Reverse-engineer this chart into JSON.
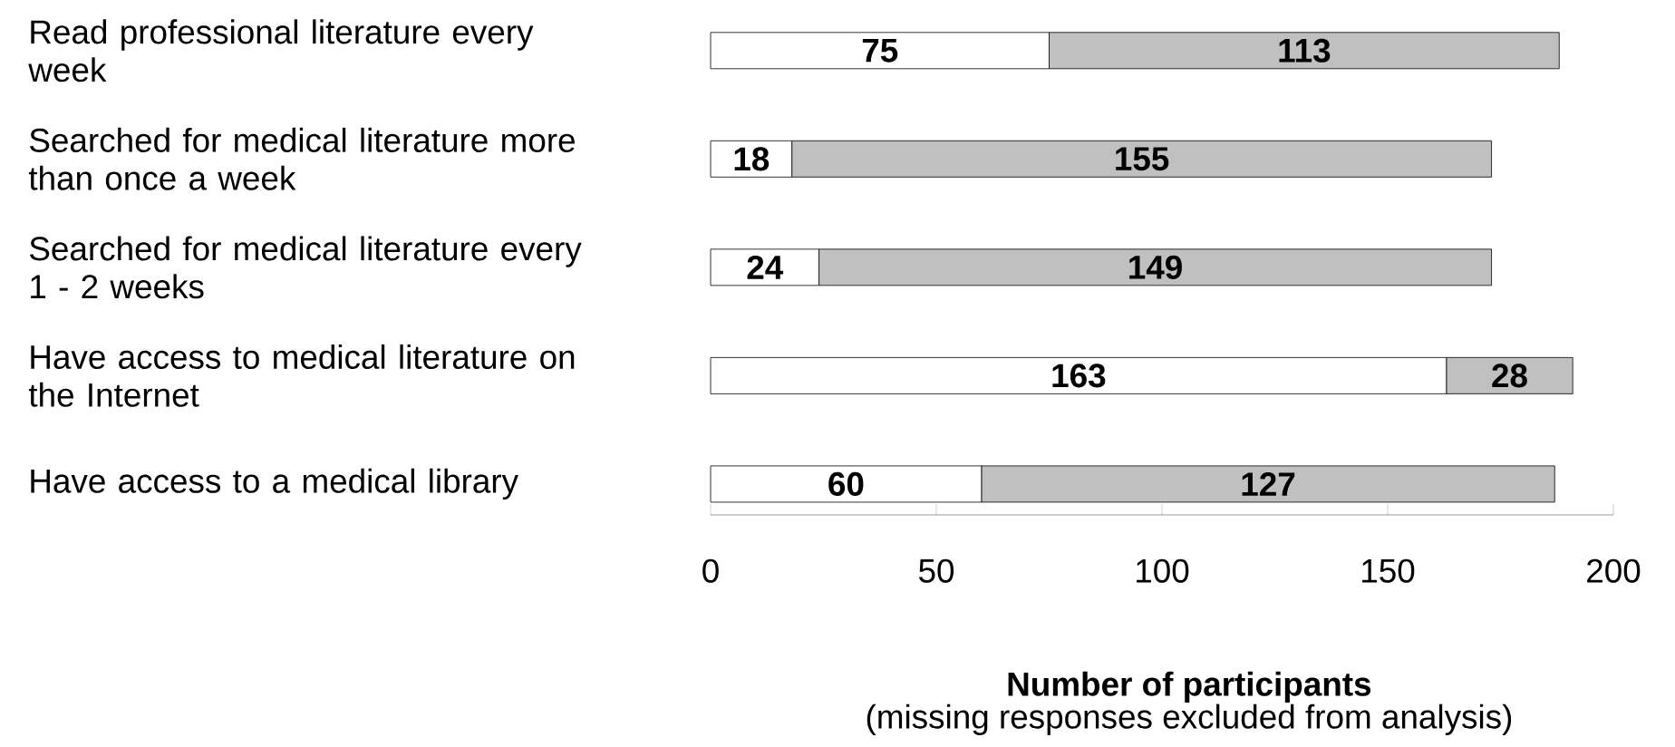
{
  "chart_data": {
    "type": "bar",
    "orientation": "horizontal",
    "stacked": true,
    "data_labels": true,
    "categories": [
      "Read professional literature every week",
      "Searched for medical literature more than once a week",
      "Searched for medical literature every 1 - 2 weeks",
      "Have access to medical literature on the Internet",
      "Have access to a medical library"
    ],
    "series": [
      {
        "color": "#ffffff",
        "values": [
          75,
          18,
          24,
          163,
          60
        ]
      },
      {
        "color": "#c0c0c0",
        "values": [
          113,
          155,
          149,
          28,
          127
        ]
      }
    ],
    "xlim": [
      0,
      200
    ],
    "xticks": [
      0,
      50,
      100,
      150,
      200
    ],
    "xlabel": "Number of participants",
    "annotations": [
      "(missing responses excluded from analysis)"
    ],
    "grid": false
  }
}
